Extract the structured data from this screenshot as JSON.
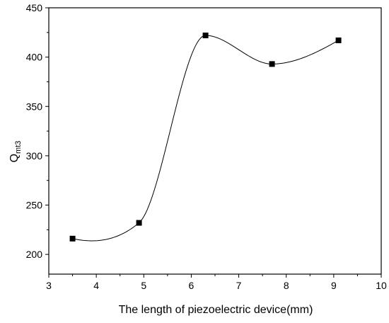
{
  "chart_data": {
    "type": "scatter",
    "xlabel": "The length of piezoelectric device(mm)",
    "ylabel": {
      "main": "Q",
      "subscript": "mt3"
    },
    "xlim": [
      3,
      10
    ],
    "ylim": [
      180,
      450
    ],
    "x_ticks": [
      3,
      4,
      5,
      6,
      7,
      8,
      9,
      10
    ],
    "y_ticks": [
      200,
      250,
      300,
      350,
      400,
      450
    ],
    "grid": false,
    "legend": "none",
    "series": [
      {
        "marker": "square",
        "smooth_curve": true,
        "color": "#000000",
        "points": [
          {
            "x": 3.5,
            "y": 216
          },
          {
            "x": 4.9,
            "y": 232
          },
          {
            "x": 6.3,
            "y": 422
          },
          {
            "x": 7.7,
            "y": 393
          },
          {
            "x": 9.1,
            "y": 417
          }
        ]
      }
    ]
  }
}
